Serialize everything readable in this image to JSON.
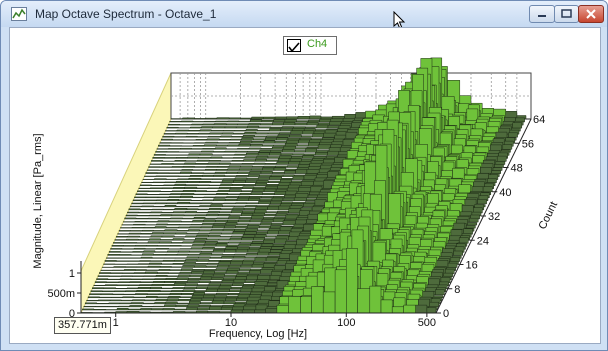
{
  "window": {
    "title": "Map Octave Spectrum - Octave_1",
    "controls": [
      "minimize",
      "maximize",
      "close"
    ]
  },
  "legend": {
    "label": "Ch4",
    "checked": true,
    "color": "#3a9a1c"
  },
  "readout": {
    "value": "357.771m"
  },
  "chart_data": {
    "type": "waterfall-3d",
    "title": "",
    "xlabel": "Frequency, Log [Hz]",
    "ylabel": "Magnitude, Linear [Pa_rms]",
    "zlabel": "Count",
    "x_scale": "log",
    "xlim": [
      0.5,
      600
    ],
    "x_ticks": [
      "1",
      "10",
      "100",
      "500"
    ],
    "y_ticks": [
      "0",
      "500m",
      "1"
    ],
    "z_ticks": [
      "0",
      "8",
      "16",
      "24",
      "32",
      "40",
      "48",
      "56",
      "64"
    ],
    "zlim": [
      0,
      64
    ],
    "grid": true,
    "series": [
      {
        "name": "Ch4",
        "color": "#6fc23a"
      }
    ],
    "frequency_bands_hz": [
      0.5,
      0.63,
      0.8,
      1,
      1.25,
      1.6,
      2,
      2.5,
      3.15,
      4,
      5,
      6.3,
      8,
      10,
      12.5,
      16,
      20,
      25,
      31.5,
      40,
      50,
      63,
      80,
      100,
      125,
      160,
      200,
      250,
      315,
      400,
      500
    ],
    "magnitude_envelope": [
      0.02,
      0.02,
      0.02,
      0.03,
      0.03,
      0.03,
      0.03,
      0.04,
      0.04,
      0.05,
      0.05,
      0.06,
      0.06,
      0.07,
      0.08,
      0.1,
      0.14,
      0.2,
      0.3,
      0.45,
      0.6,
      0.8,
      1.1,
      1.3,
      0.7,
      0.5,
      0.35,
      0.25,
      0.18,
      0.14,
      0.1
    ]
  }
}
